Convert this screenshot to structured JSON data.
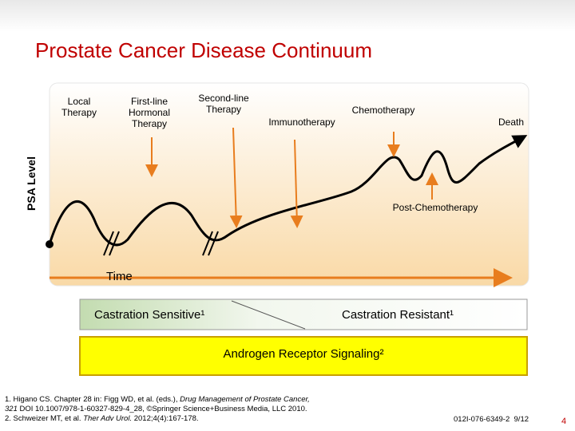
{
  "title": "Prostate Cancer Disease Continuum",
  "y_axis_label": "PSA Level",
  "x_axis_label": "Time",
  "stages": [
    "Local Therapy",
    "First-line Hormonal Therapy",
    "Second-line Therapy",
    "Immunotherapy",
    "Chemotherapy",
    "Death",
    "Post-Chemotherapy"
  ],
  "phases": [
    "Castration Sensitive¹",
    "Castration Resistant¹"
  ],
  "signaling": "Androgen Receptor Signaling²",
  "references": [
    [
      "1. Higano CS. Chapter 28 in: Figg WD, et al. (eds.), ",
      "Drug Management of Prostate Cancer,"
    ],
    [
      "321",
      " DOI 10.1007/978-1-60327-829-4_28, ©Springer Science+Business Media, LLC 2010."
    ],
    [
      "2. Schweizer MT, et al. ",
      "Ther Adv Urol.",
      " 2012;4(4):167-178."
    ]
  ],
  "footer_code": "012I-076-6349-2  9/12",
  "page_number": "4"
}
